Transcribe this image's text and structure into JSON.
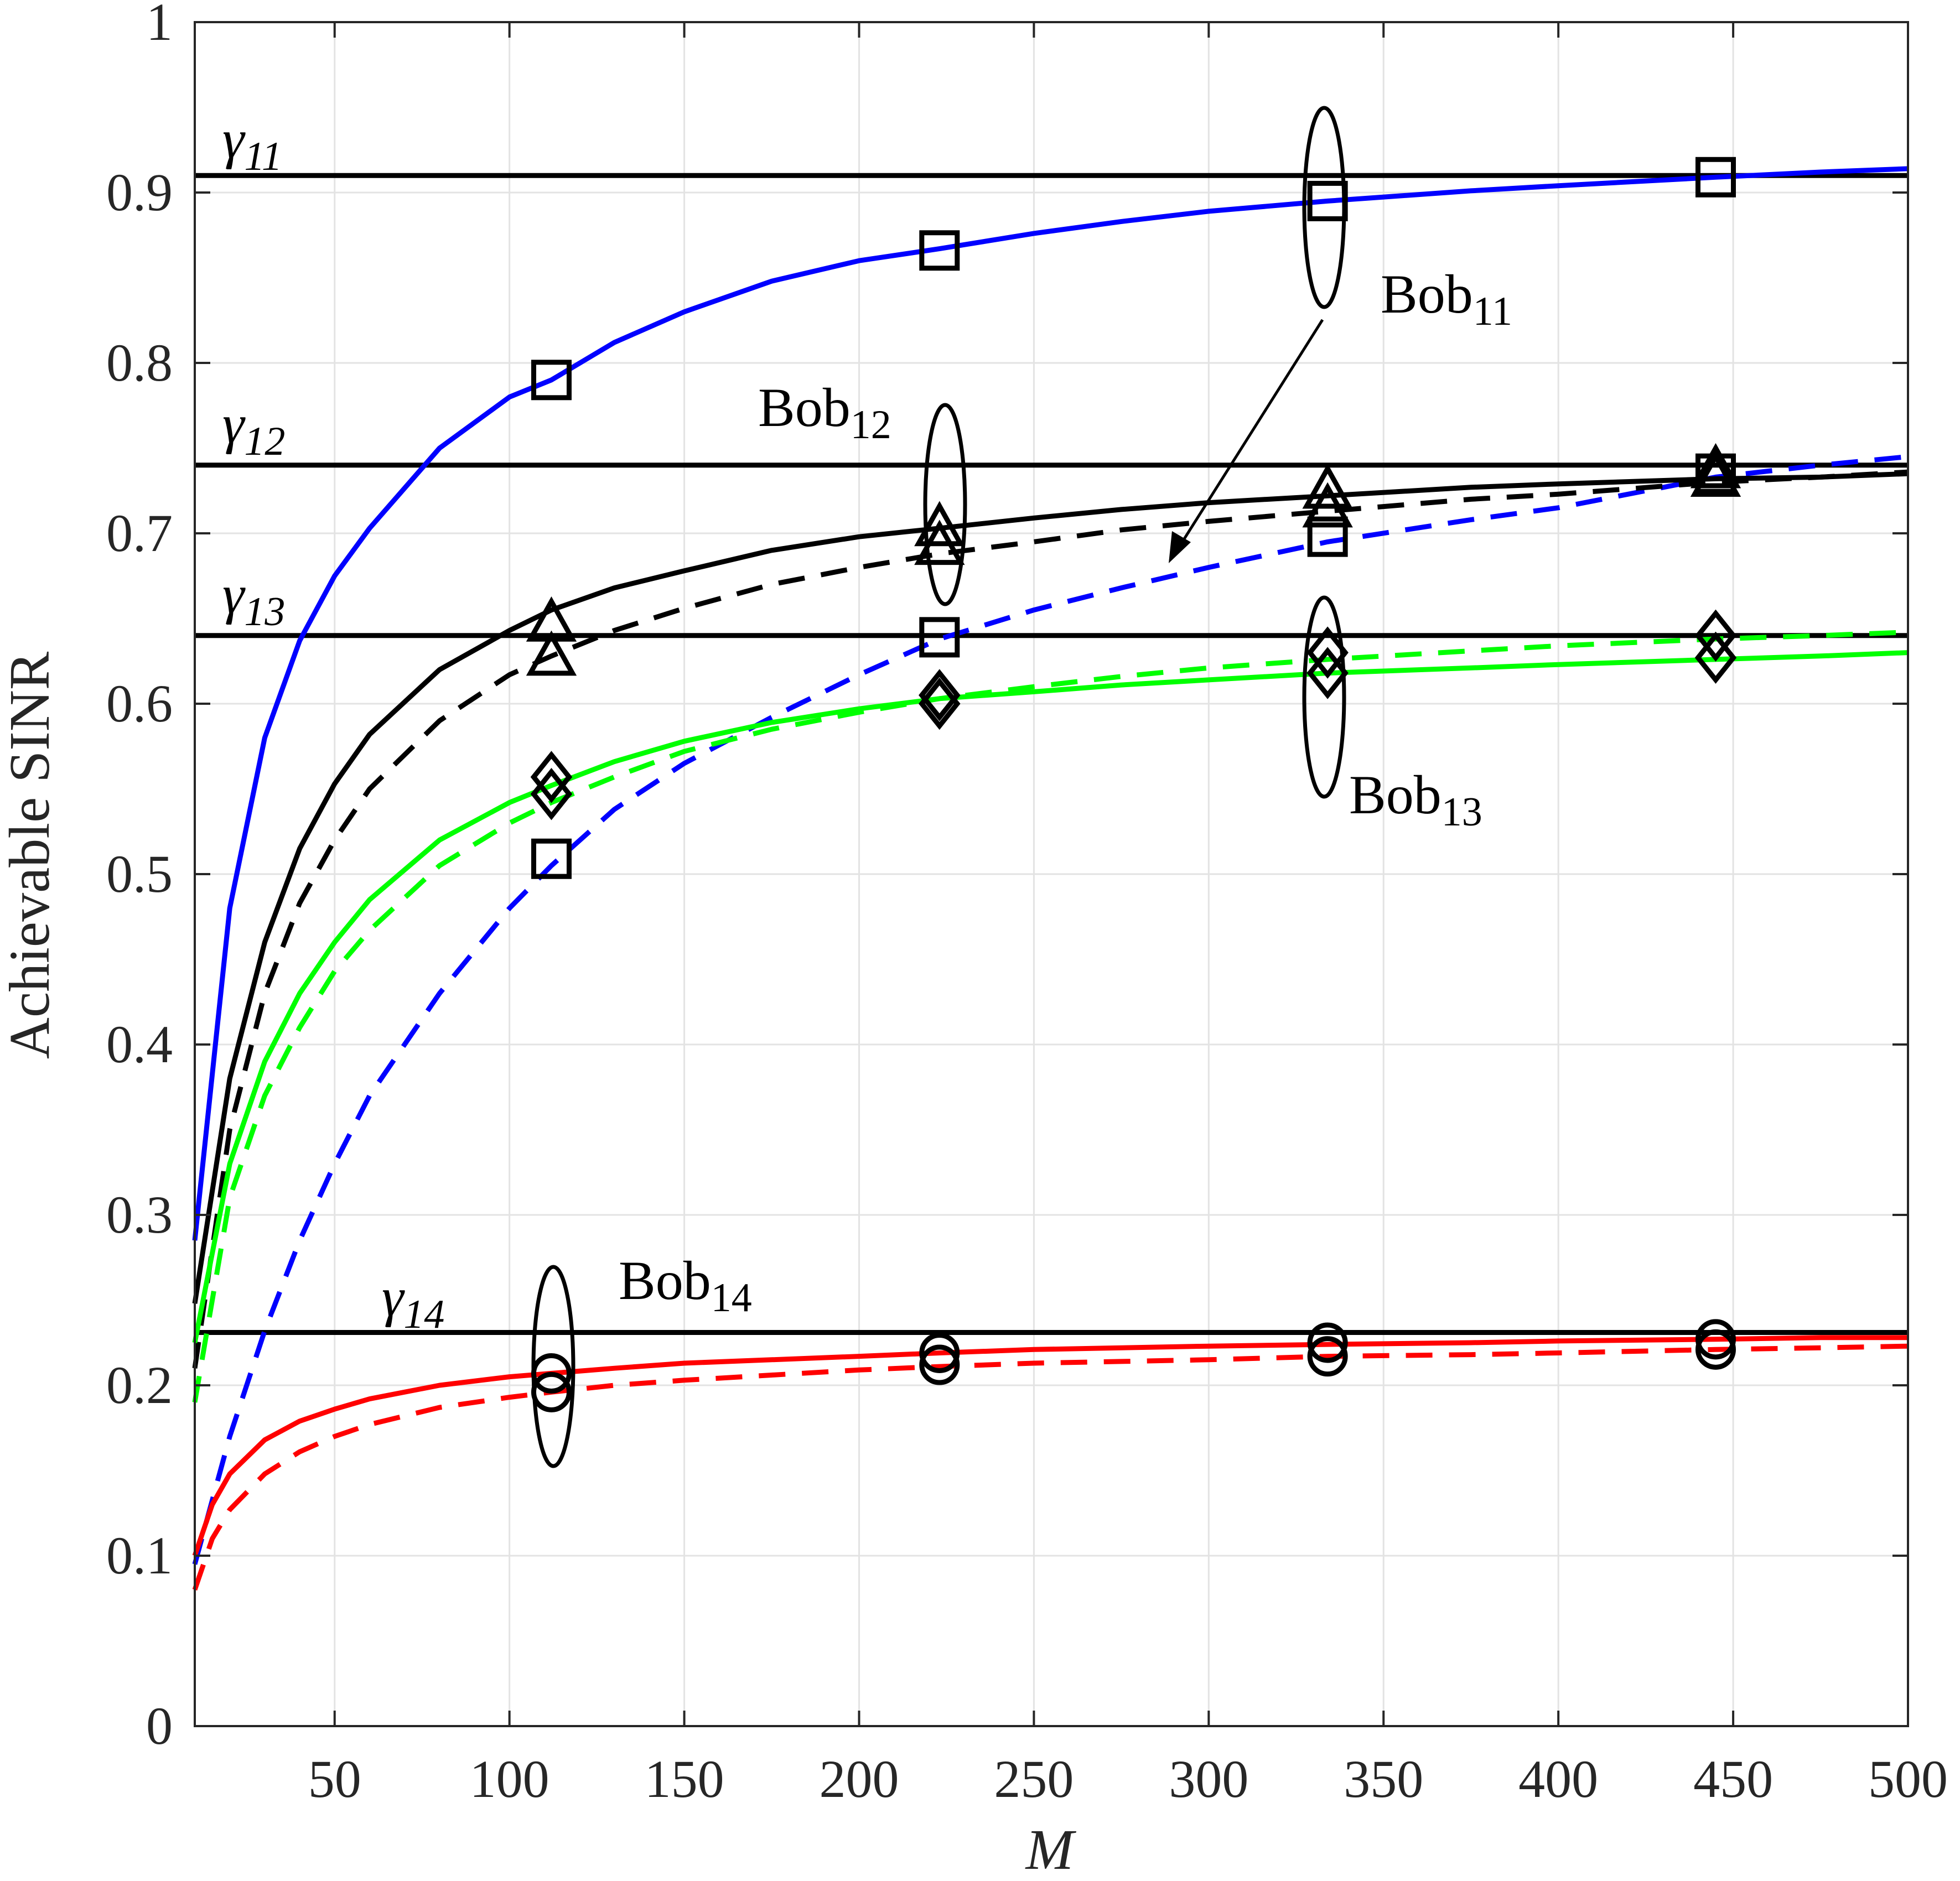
{
  "chart_data": {
    "type": "line",
    "xlabel": "M",
    "ylabel": "Achievable SINR",
    "xlim": [
      10,
      500
    ],
    "ylim": [
      0,
      1
    ],
    "xticks": [
      50,
      100,
      150,
      200,
      250,
      300,
      350,
      400,
      450,
      500
    ],
    "yticks": [
      0,
      0.1,
      0.2,
      0.3,
      0.4,
      0.5,
      0.6,
      0.7,
      0.8,
      0.9,
      1
    ],
    "xtick_labels": [
      "50",
      "100",
      "150",
      "200",
      "250",
      "300",
      "350",
      "400",
      "450",
      "500"
    ],
    "ytick_labels": [
      "0",
      "0.1",
      "0.2",
      "0.3",
      "0.4",
      "0.5",
      "0.6",
      "0.7",
      "0.8",
      "0.9",
      "1"
    ],
    "grid": true,
    "colors": {
      "blue": "#0000ff",
      "black": "#000000",
      "green": "#00ff00",
      "red": "#ff0000"
    },
    "thresholds": [
      {
        "label": "γ",
        "sub": "11",
        "y": 0.91
      },
      {
        "label": "γ",
        "sub": "12",
        "y": 0.74
      },
      {
        "label": "γ",
        "sub": "13",
        "y": 0.64
      },
      {
        "label": "γ",
        "sub": "14",
        "y": 0.231
      }
    ],
    "series": [
      {
        "color": "blue",
        "dash": "solid",
        "x": [
          10,
          20,
          30,
          40,
          50,
          60,
          80,
          100,
          112,
          130,
          150,
          175,
          200,
          223,
          250,
          275,
          300,
          334,
          375,
          400,
          445,
          475,
          500
        ],
        "y": [
          0.285,
          0.48,
          0.58,
          0.637,
          0.675,
          0.703,
          0.75,
          0.78,
          0.79,
          0.812,
          0.83,
          0.848,
          0.86,
          0.867,
          0.876,
          0.883,
          0.889,
          0.895,
          0.901,
          0.904,
          0.909,
          0.912,
          0.914
        ]
      },
      {
        "color": "blue",
        "dash": "dashed",
        "x": [
          10,
          20,
          30,
          40,
          50,
          60,
          80,
          100,
          112,
          130,
          150,
          175,
          200,
          223,
          250,
          275,
          300,
          334,
          375,
          400,
          445,
          475,
          500
        ],
        "y": [
          0.095,
          0.17,
          0.232,
          0.285,
          0.33,
          0.37,
          0.43,
          0.48,
          0.505,
          0.538,
          0.565,
          0.592,
          0.617,
          0.638,
          0.655,
          0.668,
          0.68,
          0.695,
          0.708,
          0.715,
          0.733,
          0.74,
          0.745
        ]
      },
      {
        "color": "black",
        "dash": "solid",
        "x": [
          10,
          20,
          30,
          40,
          50,
          60,
          80,
          100,
          112,
          130,
          150,
          175,
          200,
          223,
          250,
          275,
          300,
          334,
          375,
          400,
          445,
          475,
          500
        ],
        "y": [
          0.248,
          0.38,
          0.46,
          0.515,
          0.553,
          0.582,
          0.62,
          0.643,
          0.655,
          0.668,
          0.678,
          0.69,
          0.698,
          0.703,
          0.709,
          0.714,
          0.718,
          0.722,
          0.727,
          0.729,
          0.732,
          0.733,
          0.735
        ]
      },
      {
        "color": "black",
        "dash": "dashed",
        "x": [
          10,
          20,
          30,
          40,
          50,
          60,
          80,
          100,
          112,
          130,
          150,
          175,
          200,
          223,
          250,
          275,
          300,
          334,
          375,
          400,
          445,
          475,
          500
        ],
        "y": [
          0.21,
          0.35,
          0.43,
          0.483,
          0.52,
          0.55,
          0.59,
          0.617,
          0.628,
          0.643,
          0.656,
          0.67,
          0.68,
          0.688,
          0.695,
          0.702,
          0.707,
          0.713,
          0.72,
          0.723,
          0.73,
          0.733,
          0.736
        ]
      },
      {
        "color": "green",
        "dash": "solid",
        "x": [
          10,
          20,
          30,
          40,
          50,
          60,
          80,
          100,
          112,
          130,
          150,
          175,
          200,
          223,
          250,
          275,
          300,
          334,
          375,
          400,
          445,
          475,
          500
        ],
        "y": [
          0.225,
          0.33,
          0.39,
          0.43,
          0.46,
          0.485,
          0.52,
          0.542,
          0.552,
          0.566,
          0.578,
          0.589,
          0.597,
          0.603,
          0.607,
          0.611,
          0.614,
          0.618,
          0.621,
          0.623,
          0.626,
          0.628,
          0.63
        ]
      },
      {
        "color": "green",
        "dash": "dashed",
        "x": [
          10,
          20,
          30,
          40,
          50,
          60,
          80,
          100,
          112,
          130,
          150,
          175,
          200,
          223,
          250,
          275,
          300,
          334,
          375,
          400,
          445,
          475,
          500
        ],
        "y": [
          0.19,
          0.31,
          0.37,
          0.41,
          0.443,
          0.467,
          0.505,
          0.53,
          0.542,
          0.557,
          0.572,
          0.585,
          0.595,
          0.603,
          0.61,
          0.616,
          0.621,
          0.626,
          0.631,
          0.634,
          0.638,
          0.64,
          0.642
        ]
      },
      {
        "color": "red",
        "dash": "solid",
        "x": [
          10,
          15,
          20,
          30,
          40,
          50,
          60,
          80,
          100,
          112,
          130,
          150,
          175,
          200,
          223,
          250,
          275,
          300,
          334,
          375,
          400,
          445,
          475,
          500
        ],
        "y": [
          0.1,
          0.13,
          0.148,
          0.168,
          0.179,
          0.186,
          0.192,
          0.2,
          0.205,
          0.207,
          0.21,
          0.213,
          0.215,
          0.217,
          0.219,
          0.221,
          0.222,
          0.223,
          0.224,
          0.225,
          0.226,
          0.227,
          0.228,
          0.228
        ]
      },
      {
        "color": "red",
        "dash": "dashed",
        "x": [
          10,
          15,
          20,
          30,
          40,
          50,
          60,
          80,
          100,
          112,
          130,
          150,
          175,
          200,
          223,
          250,
          275,
          300,
          334,
          375,
          400,
          445,
          475,
          500
        ],
        "y": [
          0.08,
          0.11,
          0.127,
          0.148,
          0.161,
          0.17,
          0.177,
          0.187,
          0.193,
          0.196,
          0.2,
          0.203,
          0.206,
          0.209,
          0.211,
          0.213,
          0.214,
          0.215,
          0.217,
          0.218,
          0.219,
          0.221,
          0.222,
          0.223
        ]
      }
    ],
    "markers": [
      {
        "shape": "square",
        "x": 112,
        "y": 0.79
      },
      {
        "shape": "square",
        "x": 223,
        "y": 0.866
      },
      {
        "shape": "square",
        "x": 334,
        "y": 0.895
      },
      {
        "shape": "square",
        "x": 445,
        "y": 0.909
      },
      {
        "shape": "square",
        "x": 112,
        "y": 0.509
      },
      {
        "shape": "square",
        "x": 223,
        "y": 0.639
      },
      {
        "shape": "square",
        "x": 334,
        "y": 0.698
      },
      {
        "shape": "square",
        "x": 445,
        "y": 0.735
      },
      {
        "shape": "triangle",
        "x": 112,
        "y": 0.647
      },
      {
        "shape": "triangle",
        "x": 223,
        "y": 0.703
      },
      {
        "shape": "triangle",
        "x": 334,
        "y": 0.725
      },
      {
        "shape": "triangle",
        "x": 445,
        "y": 0.737
      },
      {
        "shape": "triangle",
        "x": 112,
        "y": 0.627
      },
      {
        "shape": "triangle",
        "x": 223,
        "y": 0.692
      },
      {
        "shape": "triangle",
        "x": 334,
        "y": 0.714
      },
      {
        "shape": "triangle",
        "x": 445,
        "y": 0.732
      },
      {
        "shape": "diamond",
        "x": 112,
        "y": 0.557
      },
      {
        "shape": "diamond",
        "x": 223,
        "y": 0.605
      },
      {
        "shape": "diamond",
        "x": 334,
        "y": 0.63
      },
      {
        "shape": "diamond",
        "x": 445,
        "y": 0.64
      },
      {
        "shape": "diamond",
        "x": 112,
        "y": 0.547
      },
      {
        "shape": "diamond",
        "x": 223,
        "y": 0.6
      },
      {
        "shape": "diamond",
        "x": 334,
        "y": 0.618
      },
      {
        "shape": "diamond",
        "x": 445,
        "y": 0.627
      },
      {
        "shape": "circle",
        "x": 112,
        "y": 0.207
      },
      {
        "shape": "circle",
        "x": 223,
        "y": 0.219
      },
      {
        "shape": "circle",
        "x": 334,
        "y": 0.225
      },
      {
        "shape": "circle",
        "x": 445,
        "y": 0.227
      },
      {
        "shape": "circle",
        "x": 112,
        "y": 0.196
      },
      {
        "shape": "circle",
        "x": 223,
        "y": 0.212
      },
      {
        "shape": "circle",
        "x": 334,
        "y": 0.217
      },
      {
        "shape": "circle",
        "x": 445,
        "y": 0.221
      }
    ],
    "annotations": [
      {
        "label": "Bob",
        "sub": "11"
      },
      {
        "label": "Bob",
        "sub": "12"
      },
      {
        "label": "Bob",
        "sub": "13"
      },
      {
        "label": "Bob",
        "sub": "14"
      }
    ]
  }
}
